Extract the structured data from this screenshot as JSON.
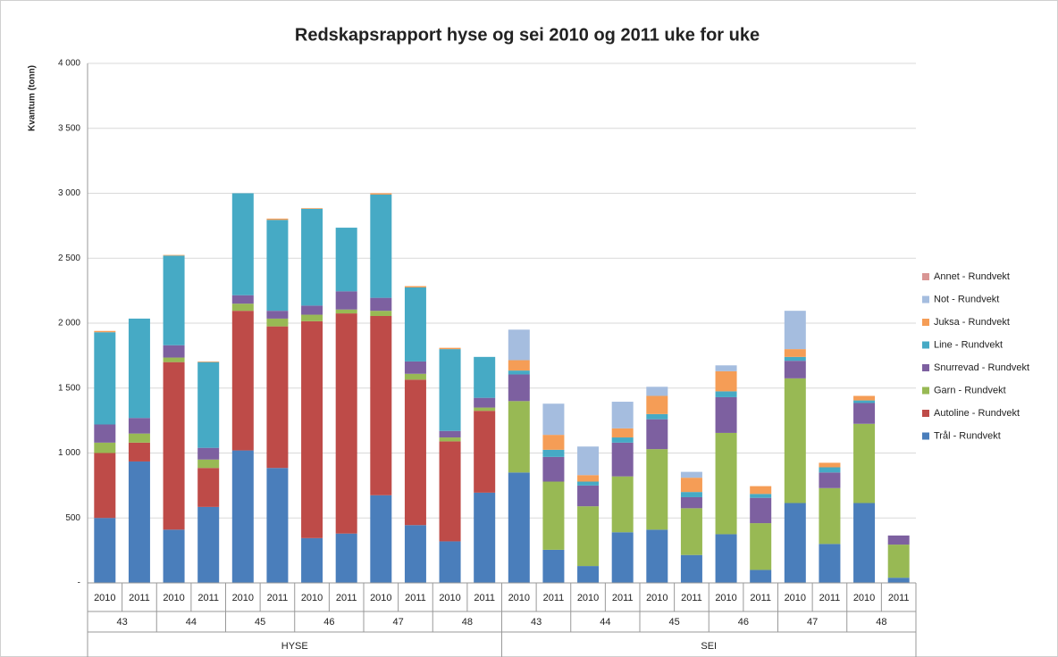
{
  "chart_data": {
    "type": "stacked_bar",
    "title": "Redskapsrapport hyse og sei 2010 og 2011 uke for uke",
    "ylabel": "Kvantum (tonn)",
    "categories": [
      "2010",
      "2011",
      "2010",
      "2011",
      "2010",
      "2011",
      "2010",
      "2011",
      "2010",
      "2011",
      "2010",
      "2011",
      "2010",
      "2011",
      "2010",
      "2011",
      "2010",
      "2011",
      "2010",
      "2011",
      "2010",
      "2011",
      "2010",
      "2011"
    ],
    "weeks": [
      "43",
      "44",
      "45",
      "46",
      "47",
      "48",
      "43",
      "44",
      "45",
      "46",
      "47",
      "48"
    ],
    "groups": [
      "HYSE",
      "SEI"
    ],
    "ylim": [
      0,
      4000
    ],
    "yticks": [
      {
        "value": 0,
        "label": "-"
      },
      {
        "value": 500,
        "label": "500"
      },
      {
        "value": 1000,
        "label": "1 000"
      },
      {
        "value": 1500,
        "label": "1 500"
      },
      {
        "value": 2000,
        "label": "2 000"
      },
      {
        "value": 2500,
        "label": "2 500"
      },
      {
        "value": 3000,
        "label": "3 000"
      },
      {
        "value": 3500,
        "label": "3 500"
      },
      {
        "value": 4000,
        "label": "4 000"
      }
    ],
    "grid": true,
    "legend": "right",
    "series": [
      {
        "name": "Trål - Rundvekt",
        "color": "#4a7ebb",
        "values": [
          500,
          935,
          410,
          585,
          1020,
          885,
          345,
          380,
          675,
          445,
          320,
          695,
          850,
          255,
          130,
          390,
          410,
          215,
          375,
          100,
          615,
          300,
          615,
          40
        ]
      },
      {
        "name": "Autoline - Rundvekt",
        "color": "#be4b48",
        "values": [
          500,
          145,
          1290,
          300,
          1075,
          1090,
          1670,
          1695,
          1380,
          1120,
          770,
          630,
          0,
          0,
          0,
          0,
          0,
          0,
          0,
          0,
          0,
          0,
          0,
          0
        ]
      },
      {
        "name": "Garn - Rundvekt",
        "color": "#98b954",
        "values": [
          80,
          70,
          35,
          65,
          55,
          60,
          50,
          30,
          40,
          45,
          30,
          25,
          550,
          525,
          460,
          430,
          620,
          360,
          780,
          360,
          960,
          430,
          610,
          255
        ]
      },
      {
        "name": "Snurrevad - Rundvekt",
        "color": "#7d60a0",
        "values": [
          140,
          120,
          95,
          90,
          65,
          60,
          70,
          140,
          100,
          95,
          50,
          75,
          205,
          190,
          160,
          260,
          230,
          85,
          275,
          195,
          135,
          120,
          160,
          70
        ]
      },
      {
        "name": "Line - Rundvekt",
        "color": "#46aac5",
        "values": [
          710,
          765,
          690,
          660,
          785,
          700,
          745,
          490,
          795,
          570,
          630,
          315,
          30,
          55,
          30,
          40,
          40,
          40,
          45,
          30,
          30,
          40,
          20,
          0
        ]
      },
      {
        "name": "Juksa - Rundvekt",
        "color": "#f59d56",
        "values": [
          10,
          0,
          5,
          5,
          0,
          10,
          5,
          0,
          10,
          10,
          10,
          0,
          80,
          115,
          50,
          70,
          140,
          110,
          155,
          60,
          60,
          35,
          35,
          0
        ]
      },
      {
        "name": "Not - Rundvekt",
        "color": "#a5bddf",
        "values": [
          0,
          0,
          0,
          0,
          0,
          0,
          0,
          0,
          0,
          0,
          0,
          0,
          235,
          240,
          220,
          205,
          70,
          45,
          45,
          0,
          295,
          0,
          0,
          0
        ]
      },
      {
        "name": "Annet - Rundvekt",
        "color": "#d99694",
        "values": [
          0,
          0,
          0,
          0,
          0,
          0,
          0,
          0,
          0,
          0,
          0,
          0,
          0,
          0,
          0,
          0,
          0,
          0,
          0,
          0,
          0,
          0,
          0,
          0
        ]
      }
    ]
  }
}
